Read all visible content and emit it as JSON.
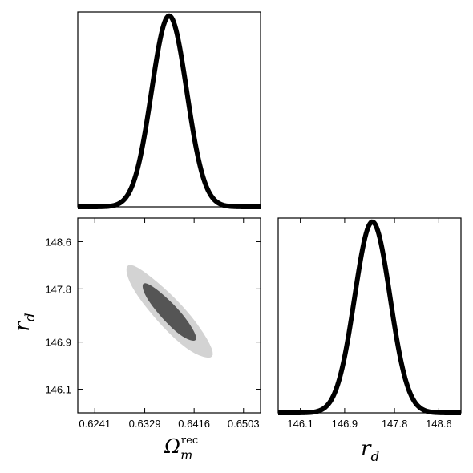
{
  "chart_data": [
    {
      "type": "line",
      "panel": "marginal-omega",
      "xlim": [
        0.6211,
        0.6533
      ],
      "ylim": [
        0,
        1.02
      ],
      "peak_x": 0.6372,
      "sigma_x": 0.0031,
      "x_ticks": [],
      "y_ticks": [],
      "xlabel": "",
      "ylabel": ""
    },
    {
      "type": "contour",
      "panel": "joint",
      "xlim": [
        0.6211,
        0.6533
      ],
      "ylim": [
        145.7,
        149.0
      ],
      "x_ticks": [
        "0.6241",
        "0.6329",
        "0.6416",
        "0.6503"
      ],
      "y_ticks": [
        "146.1",
        "146.9",
        "147.8",
        "148.6"
      ],
      "x_tick_values": [
        0.6241,
        0.6329,
        0.6416,
        0.6503
      ],
      "y_tick_values": [
        146.1,
        146.9,
        147.8,
        148.6
      ],
      "xlabel_main": "Ω",
      "xlabel_sub": "m",
      "xlabel_sup": "rec",
      "ylabel_main": "r",
      "ylabel_sub": "d",
      "center": [
        0.6372,
        147.4
      ],
      "sigma_x": 0.0031,
      "sigma_y": 0.32,
      "correlation": -0.9,
      "contour_levels": [
        "68%",
        "95%"
      ],
      "colors": {
        "inner": "#555555",
        "outer": "#d3d3d3"
      }
    },
    {
      "type": "line",
      "panel": "marginal-rd",
      "xlim": [
        145.7,
        149.0
      ],
      "ylim": [
        0,
        1.02
      ],
      "peak_x": 147.4,
      "sigma_x": 0.32,
      "x_ticks": [
        "146.1",
        "146.9",
        "147.8",
        "148.6"
      ],
      "x_tick_values": [
        146.1,
        146.9,
        147.8,
        148.6
      ],
      "xlabel_main": "r",
      "xlabel_sub": "d"
    }
  ]
}
